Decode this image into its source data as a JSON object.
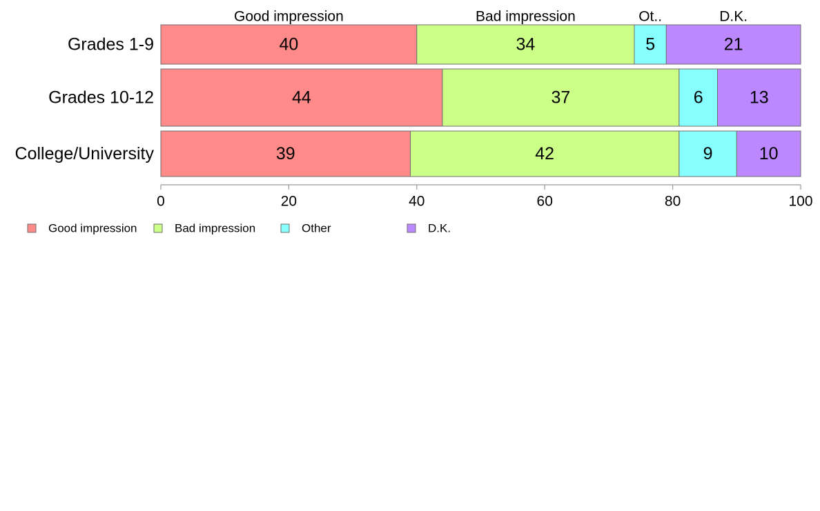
{
  "chart_data": {
    "type": "bar",
    "orientation": "horizontal",
    "stacked": true,
    "categories": [
      "Grades 1-9",
      "Grades 10-12",
      "College/University"
    ],
    "series": [
      {
        "name": "Good impression",
        "header": "Good impression",
        "color": "#ff8a8a",
        "values": [
          40,
          44,
          39
        ]
      },
      {
        "name": "Bad impression",
        "header": "Bad impression",
        "color": "#ccff88",
        "values": [
          34,
          37,
          42
        ]
      },
      {
        "name": "Other",
        "header": "Ot..",
        "color": "#88ffff",
        "values": [
          5,
          6,
          9
        ]
      },
      {
        "name": "D.K.",
        "header": "D.K.",
        "color": "#bb88ff",
        "values": [
          21,
          13,
          10
        ]
      }
    ],
    "xlim": [
      0,
      100
    ],
    "x_ticks": [
      0,
      20,
      40,
      60,
      80,
      100
    ],
    "xlabel": "",
    "ylabel": "",
    "title": "",
    "grid": false,
    "legend_position": "bottom-left"
  }
}
